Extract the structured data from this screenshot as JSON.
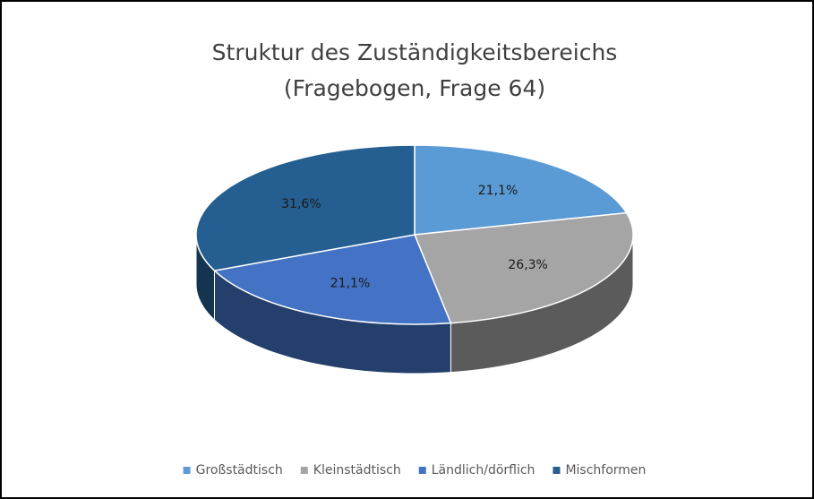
{
  "chart_data": {
    "type": "pie3d",
    "title": "Struktur des Zuständigkeitsbereichs",
    "subtitle": "(Fragebogen, Frage 64)",
    "categories": [
      "Großstädtisch",
      "Kleinstädtisch",
      "Ländlich/dörflich",
      "Mischformen"
    ],
    "values": [
      21.1,
      26.3,
      21.1,
      31.6
    ],
    "value_labels": [
      "21,1%",
      "26,3%",
      "21,1%",
      "31,6%"
    ],
    "colors": [
      "#5b9bd5",
      "#a5a5a5",
      "#4472c4",
      "#255e91"
    ],
    "legend": "bottom"
  }
}
